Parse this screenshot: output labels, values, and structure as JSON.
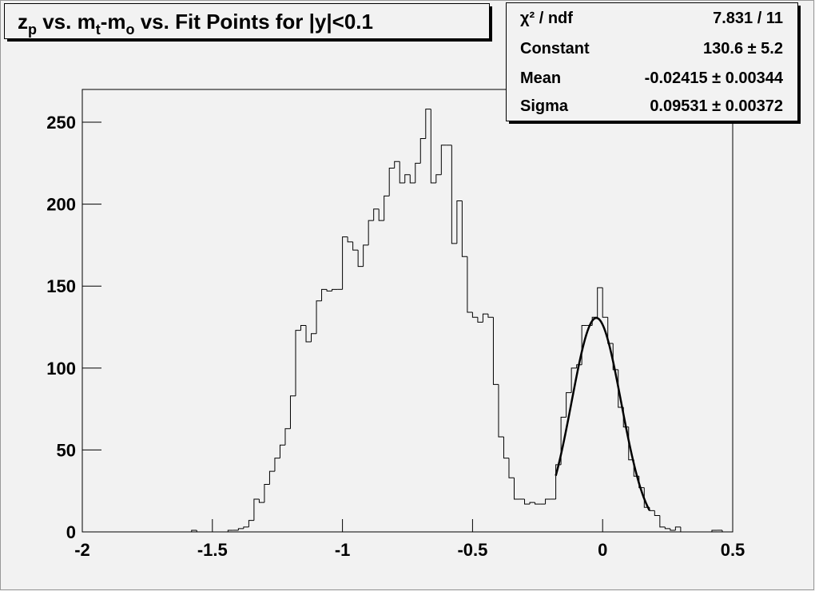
{
  "chart_data": {
    "type": "histogram",
    "title_parts": [
      "z",
      "p",
      " vs. m",
      "t",
      "-m",
      "o",
      " vs. Fit Points for |y|<0.1"
    ],
    "bins": [
      -2,
      -1.98,
      -1.96,
      -1.94,
      -1.92,
      -1.9,
      -1.88,
      -1.86,
      -1.84,
      -1.82,
      -1.8,
      -1.78,
      -1.76,
      -1.74,
      -1.72,
      -1.7,
      -1.68,
      -1.66,
      -1.64,
      -1.62,
      -1.6,
      -1.58,
      -1.56,
      -1.54,
      -1.52,
      -1.5,
      -1.48,
      -1.46,
      -1.44,
      -1.42,
      -1.4,
      -1.38,
      -1.36,
      -1.34,
      -1.32,
      -1.3,
      -1.28,
      -1.26,
      -1.24,
      -1.22,
      -1.2,
      -1.18,
      -1.16,
      -1.14,
      -1.12,
      -1.1,
      -1.08,
      -1.06,
      -1.04,
      -1.02,
      -1,
      -0.98,
      -0.96,
      -0.94,
      -0.92,
      -0.9,
      -0.88,
      -0.86,
      -0.84,
      -0.82,
      -0.8,
      -0.78,
      -0.76,
      -0.74,
      -0.72,
      -0.7,
      -0.68,
      -0.66,
      -0.64,
      -0.62,
      -0.6,
      -0.58,
      -0.56,
      -0.54,
      -0.52,
      -0.5,
      -0.48,
      -0.46,
      -0.44,
      -0.42,
      -0.4,
      -0.38,
      -0.36,
      -0.34,
      -0.32,
      -0.3,
      -0.28,
      -0.26,
      -0.24,
      -0.22,
      -0.2,
      -0.18,
      -0.16,
      -0.14,
      -0.12,
      -0.1,
      -0.08,
      -0.06,
      -0.04,
      -0.02,
      0,
      0.02,
      0.04,
      0.06,
      0.08,
      0.1,
      0.12,
      0.14,
      0.16,
      0.18,
      0.2,
      0.22,
      0.24,
      0.26,
      0.28,
      0.3,
      0.32,
      0.34,
      0.36,
      0.38,
      0.4,
      0.42,
      0.44,
      0.46,
      0.48,
      0.5
    ],
    "values": [
      0,
      0,
      0,
      0,
      0,
      0,
      0,
      0,
      0,
      0,
      0,
      0,
      0,
      0,
      0,
      0,
      0,
      0,
      0,
      0,
      0,
      1,
      0,
      0,
      0,
      0,
      0,
      0,
      1,
      1,
      2,
      3,
      7,
      20,
      18,
      29,
      37,
      45,
      53,
      63,
      83,
      123,
      126,
      116,
      121,
      141,
      148,
      147,
      148,
      148,
      180,
      177,
      172,
      162,
      175,
      190,
      197,
      190,
      205,
      222,
      226,
      213,
      218,
      213,
      225,
      240,
      258,
      213,
      218,
      236,
      236,
      176,
      202,
      168,
      134,
      131,
      128,
      133,
      131,
      90,
      58,
      45,
      33,
      20,
      20,
      17,
      18,
      17,
      17,
      20,
      20,
      41,
      70,
      85,
      100,
      102,
      126,
      126,
      131,
      149,
      131,
      115,
      99,
      76,
      64,
      44,
      34,
      27,
      15,
      13,
      10,
      3,
      2,
      1,
      3,
      0,
      0,
      0,
      0,
      0,
      0,
      1,
      1,
      0,
      0
    ],
    "color": "#000000",
    "xlim": [
      -2,
      0.5
    ],
    "xticks": [
      -2,
      -1.5,
      -1,
      -0.5,
      0,
      0.5
    ],
    "ylim": [
      0,
      270
    ],
    "yticks": [
      0,
      50,
      100,
      150,
      200,
      250
    ],
    "fit": {
      "constant": 130.6,
      "mean": -0.02415,
      "sigma": 0.09531,
      "xlim": [
        -0.18,
        0.18
      ],
      "color": "#000000"
    },
    "stats": [
      {
        "name": "χ² / ndf",
        "value": "7.831 / 11"
      },
      {
        "name": "Constant",
        "value": "130.6 ± 5.2"
      },
      {
        "name": "Mean",
        "value": "-0.02415 ± 0.00344"
      },
      {
        "name": "Sigma",
        "value": "0.09531 ± 0.00372"
      }
    ]
  }
}
